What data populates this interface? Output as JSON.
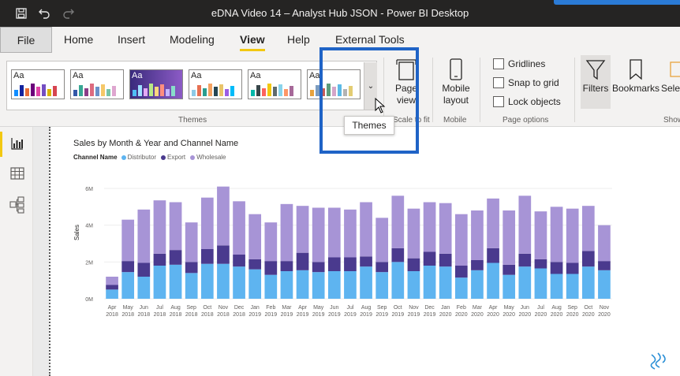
{
  "window": {
    "title": "eDNA Video 14 – Analyst Hub JSON - Power BI Desktop"
  },
  "tabs": [
    {
      "label": "File"
    },
    {
      "label": "Home"
    },
    {
      "label": "Insert"
    },
    {
      "label": "Modeling"
    },
    {
      "label": "View"
    },
    {
      "label": "Help"
    },
    {
      "label": "External Tools"
    }
  ],
  "ribbon": {
    "themes": {
      "group_label": "Themes",
      "items": [
        {
          "aa": "Aa",
          "colors": [
            "#118dff",
            "#12239e",
            "#e66c37",
            "#6b007b",
            "#e044a7",
            "#744ec2",
            "#d9b300",
            "#d64550"
          ]
        },
        {
          "aa": "Aa",
          "colors": [
            "#3257a8",
            "#37a794",
            "#8b3d88",
            "#dd6b7f",
            "#6b91c9",
            "#f5c869",
            "#77c4a8",
            "#dea6cf"
          ]
        },
        {
          "aa": "Aa",
          "colors": [
            "#4fbef5",
            "#9ee0ff",
            "#e4a8f3",
            "#b8e986",
            "#fdd57e",
            "#ff8e7f",
            "#c5b7ff",
            "#88ddca"
          ]
        },
        {
          "aa": "Aa",
          "colors": [
            "#8ecae6",
            "#e76f51",
            "#2a9d8f",
            "#f4a261",
            "#264653",
            "#e9c46a",
            "#9b5de5",
            "#00bbf9"
          ]
        },
        {
          "aa": "Aa",
          "colors": [
            "#01b8aa",
            "#374649",
            "#fd625e",
            "#f2c80f",
            "#5f6b6d",
            "#8ad4eb",
            "#fe9666",
            "#a66999"
          ]
        },
        {
          "aa": "Aa",
          "colors": [
            "#e8a33d",
            "#7c9cbf",
            "#c55b5b",
            "#5b9c7b",
            "#d4a5c9",
            "#5cbae6",
            "#b3b3b3",
            "#e3cc73"
          ]
        }
      ]
    },
    "scale_to_fit": {
      "label_line1": "Page",
      "label_line2": "view",
      "group_label": "Scale to fit"
    },
    "mobile": {
      "label_line1": "Mobile",
      "label_line2": "layout",
      "group_label": "Mobile"
    },
    "page_options": {
      "group_label": "Page options",
      "gridlines": "Gridlines",
      "snap": "Snap to grid",
      "lock": "Lock objects"
    },
    "filters": "Filters",
    "bookmarks": "Bookmarks",
    "selection": "Selec",
    "show_group": "Show"
  },
  "tooltip": {
    "text": "Themes"
  },
  "colors": {
    "accent": "#f2c811",
    "highlight": "#1f63c6",
    "distributor": "#5eb4f0",
    "export": "#4a3a8e",
    "wholesale": "#a794d6"
  },
  "chart_data": {
    "type": "bar",
    "stacked": true,
    "title": "Sales by Month & Year and Channel Name",
    "legend_title": "Channel Name",
    "ylabel": "Sales",
    "ylim": [
      0,
      6600000
    ],
    "yticks": [
      "0M",
      "2M",
      "4M",
      "6M"
    ],
    "categories": [
      [
        "Apr",
        "2018"
      ],
      [
        "May",
        "2018"
      ],
      [
        "Jun",
        "2018"
      ],
      [
        "Jul",
        "2018"
      ],
      [
        "Aug",
        "2018"
      ],
      [
        "Sep",
        "2018"
      ],
      [
        "Oct",
        "2018"
      ],
      [
        "Nov",
        "2018"
      ],
      [
        "Dec",
        "2018"
      ],
      [
        "Jan",
        "2019"
      ],
      [
        "Feb",
        "2019"
      ],
      [
        "Mar",
        "2019"
      ],
      [
        "Apr",
        "2019"
      ],
      [
        "May",
        "2019"
      ],
      [
        "Jun",
        "2019"
      ],
      [
        "Jul",
        "2019"
      ],
      [
        "Aug",
        "2019"
      ],
      [
        "Sep",
        "2019"
      ],
      [
        "Oct",
        "2019"
      ],
      [
        "Nov",
        "2019"
      ],
      [
        "Dec",
        "2019"
      ],
      [
        "Jan",
        "2020"
      ],
      [
        "Feb",
        "2020"
      ],
      [
        "Mar",
        "2020"
      ],
      [
        "Apr",
        "2020"
      ],
      [
        "May",
        "2020"
      ],
      [
        "Jun",
        "2020"
      ],
      [
        "Jul",
        "2020"
      ],
      [
        "Aug",
        "2020"
      ],
      [
        "Sep",
        "2020"
      ],
      [
        "Oct",
        "2020"
      ],
      [
        "Nov",
        "2020"
      ]
    ],
    "series": [
      {
        "name": "Distributor",
        "values": [
          0.5,
          1.45,
          1.2,
          1.8,
          1.85,
          1.4,
          1.9,
          1.9,
          1.75,
          1.6,
          1.3,
          1.5,
          1.55,
          1.45,
          1.5,
          1.5,
          1.75,
          1.45,
          2.0,
          1.5,
          1.8,
          1.75,
          1.15,
          1.55,
          1.95,
          1.3,
          1.75,
          1.65,
          1.35,
          1.35,
          1.75,
          1.55
        ]
      },
      {
        "name": "Export",
        "values": [
          0.25,
          0.6,
          0.75,
          0.65,
          0.8,
          0.6,
          0.8,
          1.0,
          0.65,
          0.55,
          0.75,
          0.55,
          0.95,
          0.55,
          0.75,
          0.75,
          0.55,
          0.55,
          0.75,
          0.7,
          0.75,
          0.7,
          0.65,
          0.55,
          0.8,
          0.55,
          0.7,
          0.5,
          0.65,
          0.6,
          0.85,
          0.5
        ]
      },
      {
        "name": "Wholesale",
        "values": [
          0.45,
          2.25,
          2.9,
          2.9,
          2.6,
          2.15,
          2.8,
          3.2,
          2.9,
          2.45,
          2.1,
          3.1,
          2.55,
          2.95,
          2.7,
          2.6,
          2.95,
          2.4,
          2.85,
          2.7,
          2.7,
          2.75,
          2.8,
          2.7,
          2.7,
          2.95,
          3.15,
          2.6,
          3.0,
          2.95,
          2.45,
          1.95
        ]
      }
    ]
  }
}
